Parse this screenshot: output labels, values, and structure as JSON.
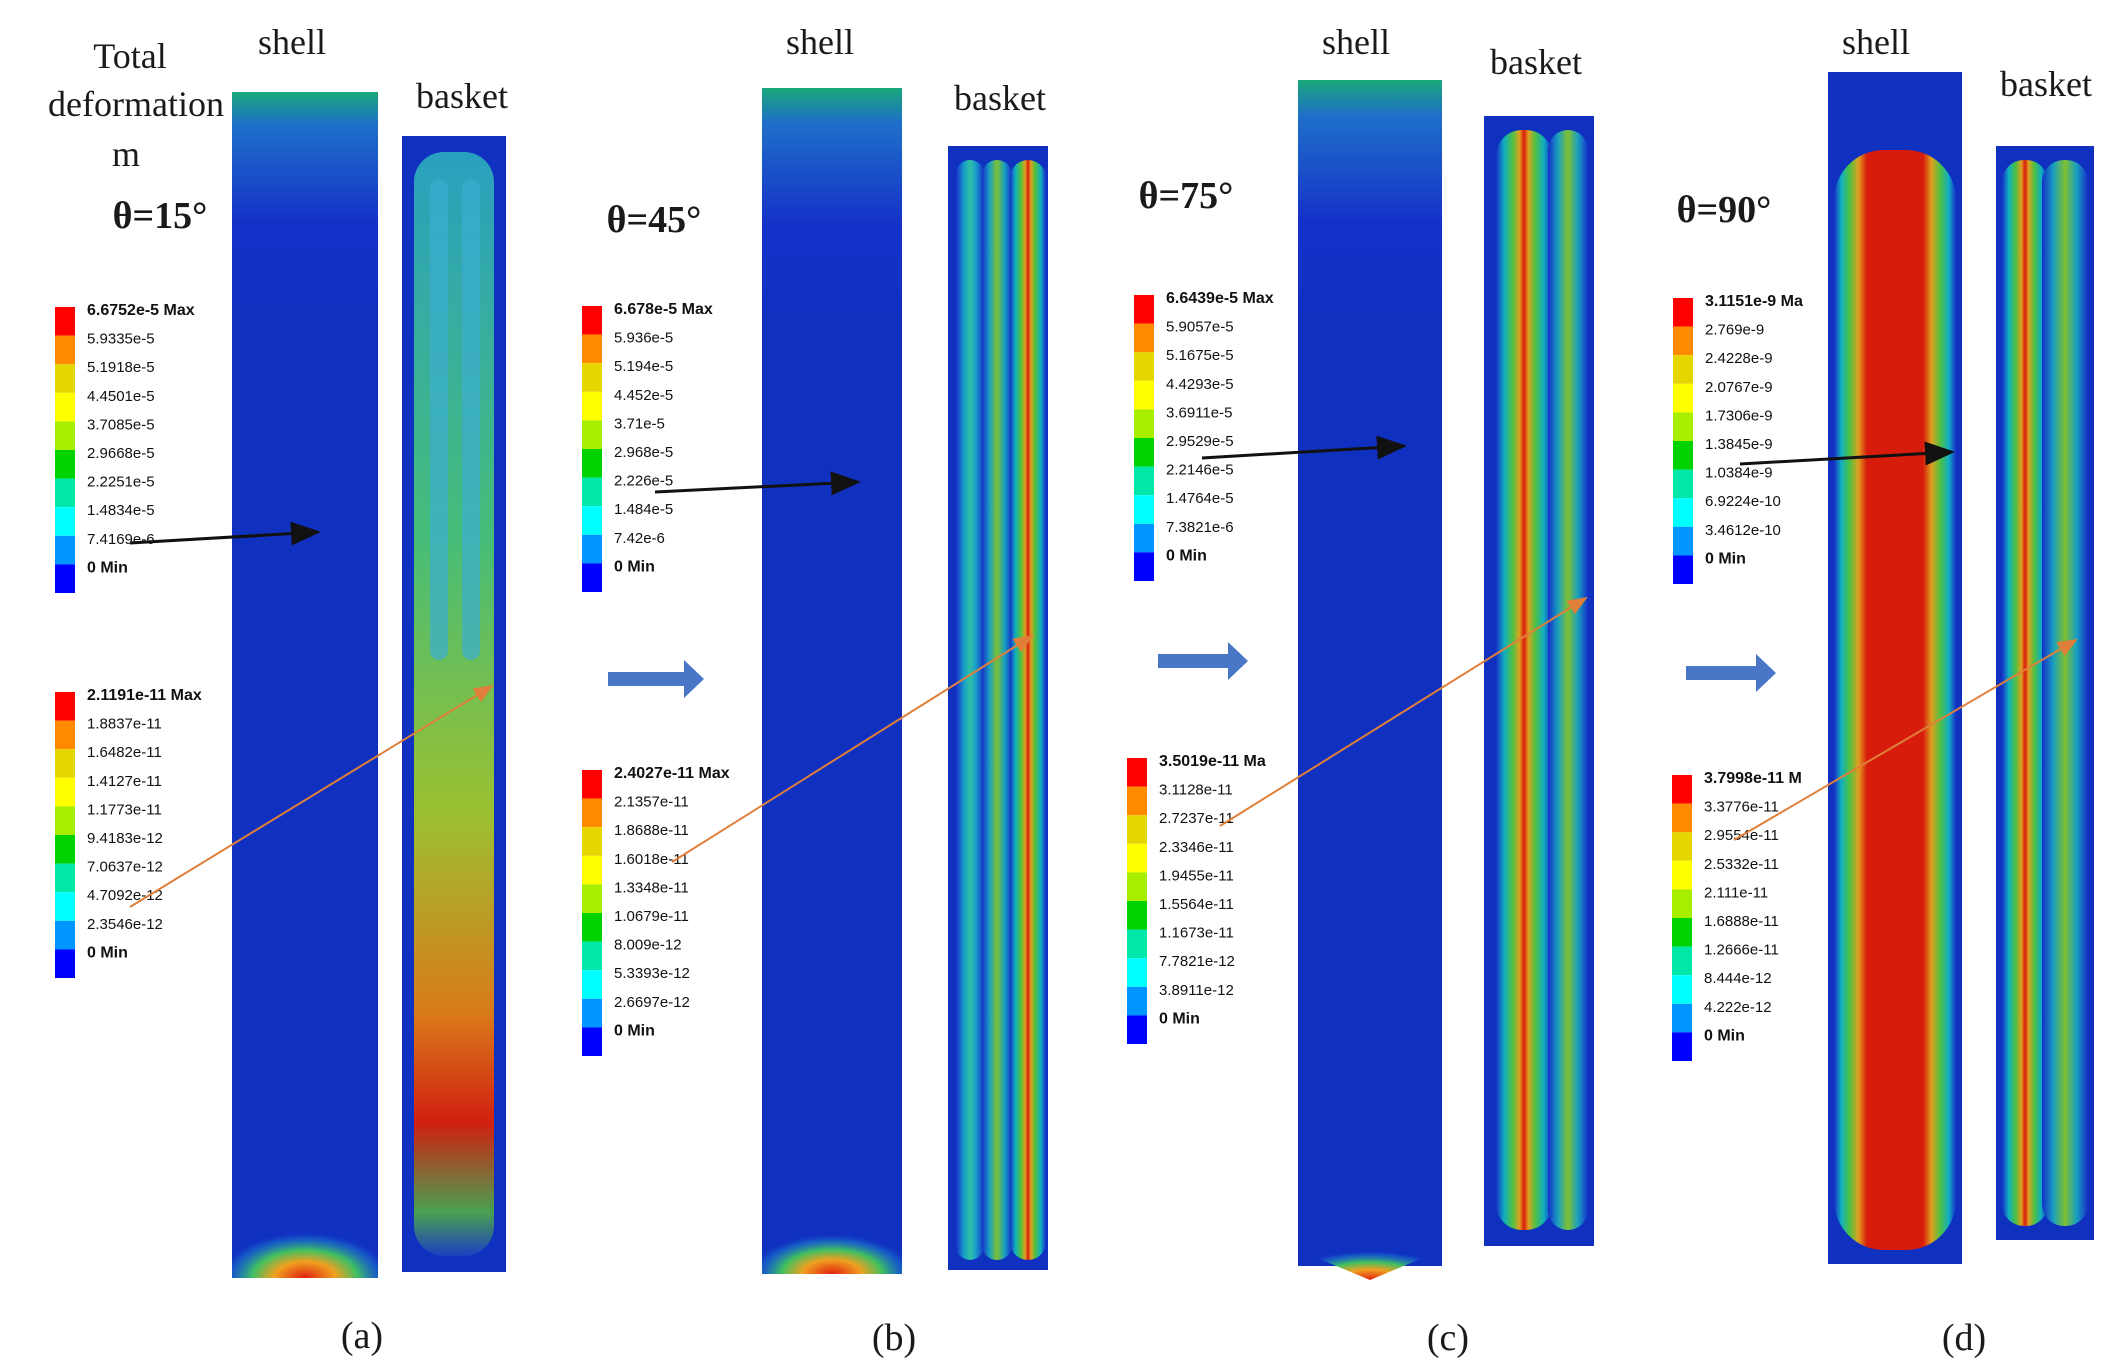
{
  "figure": {
    "total_label": [
      "Total",
      "deformation",
      "m"
    ],
    "panels": [
      {
        "id": "a",
        "caption": "(a)",
        "angle": "θ=15°",
        "shell_label": "shell",
        "basket_label": "basket",
        "shell_legend": [
          "6.6752e-5 Max",
          "5.9335e-5",
          "5.1918e-5",
          "4.4501e-5",
          "3.7085e-5",
          "2.9668e-5",
          "2.2251e-5",
          "1.4834e-5",
          "7.4169e-6",
          "0 Min"
        ],
        "basket_legend": [
          "2.1191e-11 Max",
          "1.8837e-11",
          "1.6482e-11",
          "1.4127e-11",
          "1.1773e-11",
          "9.4183e-12",
          "7.0637e-12",
          "4.7092e-12",
          "2.3546e-12",
          "0 Min"
        ]
      },
      {
        "id": "b",
        "caption": "(b)",
        "angle": "θ=45°",
        "shell_label": "shell",
        "basket_label": "basket",
        "shell_legend": [
          "6.678e-5 Max",
          "5.936e-5",
          "5.194e-5",
          "4.452e-5",
          "3.71e-5",
          "2.968e-5",
          "2.226e-5",
          "1.484e-5",
          "7.42e-6",
          "0 Min"
        ],
        "basket_legend": [
          "2.4027e-11 Max",
          "2.1357e-11",
          "1.8688e-11",
          "1.6018e-11",
          "1.3348e-11",
          "1.0679e-11",
          "8.009e-12",
          "5.3393e-12",
          "2.6697e-12",
          "0 Min"
        ]
      },
      {
        "id": "c",
        "caption": "(c)",
        "angle": "θ=75°",
        "shell_label": "shell",
        "basket_label": "basket",
        "shell_legend": [
          "6.6439e-5 Max",
          "5.9057e-5",
          "5.1675e-5",
          "4.4293e-5",
          "3.6911e-5",
          "2.9529e-5",
          "2.2146e-5",
          "1.4764e-5",
          "7.3821e-6",
          "0 Min"
        ],
        "basket_legend": [
          "3.5019e-11 Ma",
          "3.1128e-11",
          "2.7237e-11",
          "2.3346e-11",
          "1.9455e-11",
          "1.5564e-11",
          "1.1673e-11",
          "7.7821e-12",
          "3.8911e-12",
          "0 Min"
        ]
      },
      {
        "id": "d",
        "caption": "(d)",
        "angle": "θ=90°",
        "shell_label": "shell",
        "basket_label": "basket",
        "shell_legend": [
          "3.1151e-9 Ma",
          "2.769e-9",
          "2.4228e-9",
          "2.0767e-9",
          "1.7306e-9",
          "1.3845e-9",
          "1.0384e-9",
          "6.9224e-10",
          "3.4612e-10",
          "0 Min"
        ],
        "basket_legend": [
          "3.7998e-11 M",
          "3.3776e-11",
          "2.9554e-11",
          "2.5332e-11",
          "2.111e-11",
          "1.6888e-11",
          "1.2666e-11",
          "8.444e-12",
          "4.222e-12",
          "0 Min"
        ]
      }
    ],
    "colorscale": [
      "#ff0000",
      "#ff8a00",
      "#e6d600",
      "#ffff00",
      "#a8ee00",
      "#00d200",
      "#00e8a8",
      "#00ffff",
      "#0096ff",
      "#0000ff"
    ]
  }
}
